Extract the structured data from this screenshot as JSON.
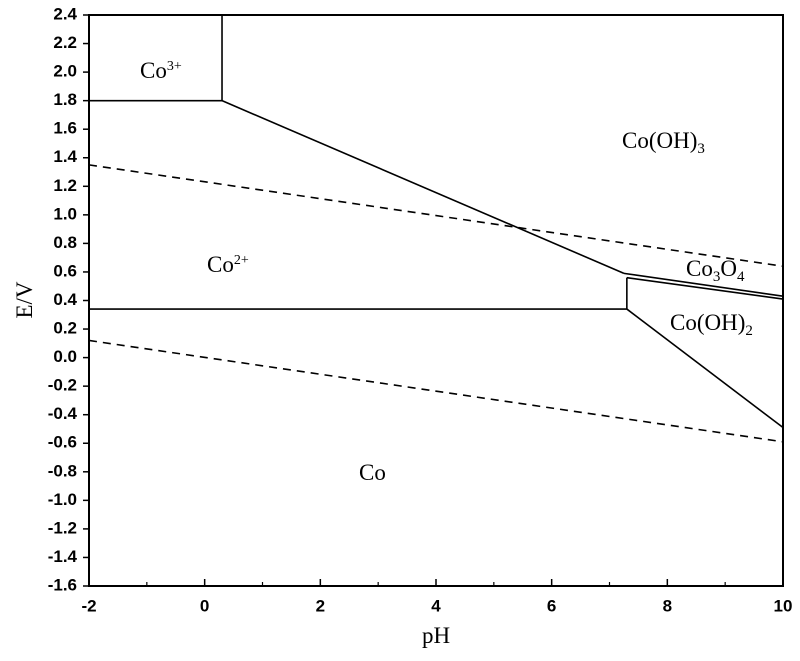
{
  "chart_data": {
    "type": "line",
    "xlabel": "pH",
    "ylabel": "E/V",
    "xlim": [
      -2,
      10
    ],
    "xticks": [
      -2,
      0,
      2,
      4,
      6,
      8,
      10
    ],
    "xminorticks": [
      -1,
      1,
      3,
      5,
      7,
      9
    ],
    "ylim": [
      -1.6,
      2.4
    ],
    "yticks": [
      {
        "value": -1.6,
        "label": "-1.6"
      },
      -1.4,
      -1.2,
      {
        "value": -1,
        "label": "-1.0"
      },
      -0.8,
      -0.6,
      -0.4,
      -0.2,
      {
        "value": 0,
        "label": "0.0"
      },
      0.2,
      0.4,
      0.6,
      0.8,
      {
        "value": 1,
        "label": "1.0"
      },
      1.2,
      1.4,
      1.6,
      1.8,
      {
        "value": 2,
        "label": "2.0"
      },
      2.2,
      2.4
    ],
    "series": [
      {
        "x": [
          -2,
          0.3
        ],
        "values": [
          1.8,
          1.8
        ],
        "color": "#000000"
      },
      {
        "x": [
          0.3,
          0.3
        ],
        "values": [
          1.8,
          2.4
        ],
        "color": "#000000"
      },
      {
        "x": [
          0.3,
          7.25
        ],
        "values": [
          1.8,
          0.59
        ],
        "color": "#000000"
      },
      {
        "x": [
          7.25,
          10
        ],
        "values": [
          0.59,
          0.43
        ],
        "color": "#000000"
      },
      {
        "x": [
          7.3,
          10
        ],
        "values": [
          0.56,
          0.41
        ],
        "color": "#000000"
      },
      {
        "x": [
          -2,
          7.3
        ],
        "values": [
          0.34,
          0.34
        ],
        "color": "#000000"
      },
      {
        "x": [
          7.3,
          7.3
        ],
        "values": [
          0.34,
          0.56
        ],
        "color": "#000000"
      },
      {
        "x": [
          7.3,
          10
        ],
        "values": [
          0.34,
          -0.49
        ],
        "color": "#000000"
      },
      {
        "x": [
          -2,
          10
        ],
        "values": [
          1.35,
          0.64
        ],
        "color": "#000000",
        "dashed": true
      },
      {
        "x": [
          -2,
          10
        ],
        "values": [
          0.12,
          -0.59
        ],
        "color": "#000000",
        "dashed": true
      }
    ],
    "annotations": [
      {
        "parts": [
          {
            "text": "Co"
          },
          {
            "sup": "3+"
          }
        ]
      },
      {
        "parts": [
          {
            "text": "Co(OH)"
          },
          {
            "sub": "3"
          }
        ]
      },
      {
        "parts": [
          {
            "text": "Co"
          },
          {
            "sup": "2+"
          }
        ]
      },
      {
        "parts": [
          {
            "text": "Co"
          },
          {
            "sub": "3"
          },
          {
            "text": "O"
          },
          {
            "sub": "4"
          }
        ]
      },
      {
        "parts": [
          {
            "text": "Co(OH)"
          },
          {
            "sub": "2"
          }
        ]
      },
      {
        "parts": [
          {
            "text": "Co"
          }
        ]
      }
    ]
  }
}
